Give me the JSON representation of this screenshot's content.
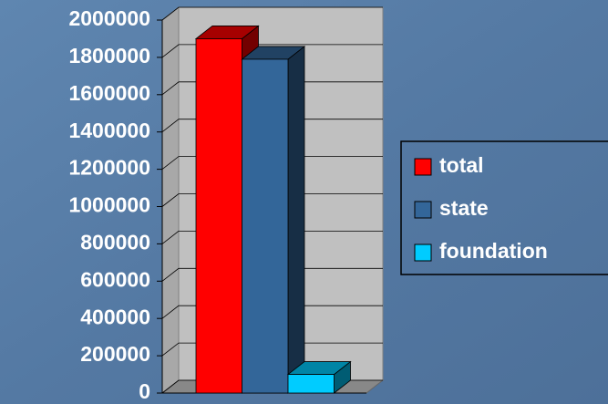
{
  "chart_data": {
    "type": "bar",
    "categories": [
      null
    ],
    "series": [
      {
        "name": "total",
        "color": "#ff0000",
        "values": [
          1900000
        ]
      },
      {
        "name": "state",
        "color": "#336699",
        "values": [
          1790000
        ]
      },
      {
        "name": "foundation",
        "color": "#00ccff",
        "values": [
          100000
        ]
      }
    ],
    "ylim": [
      0,
      2000000
    ],
    "yticks": [
      0,
      200000,
      400000,
      600000,
      800000,
      1000000,
      1200000,
      1400000,
      1600000,
      1800000,
      2000000
    ],
    "grid": true,
    "legend": "right"
  }
}
